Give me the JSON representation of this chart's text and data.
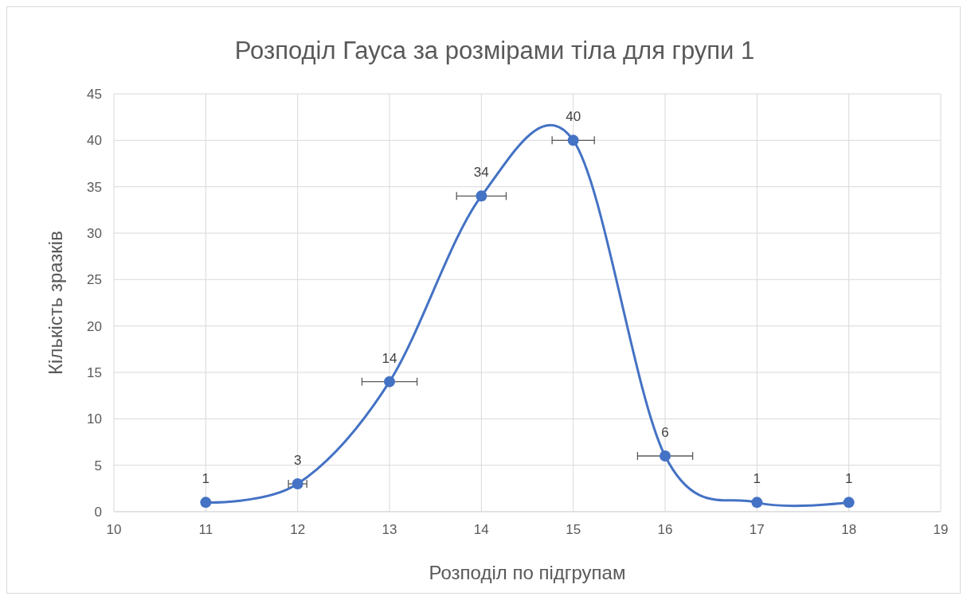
{
  "chart_data": {
    "type": "line",
    "title": "Розподіл Гауса за розмірами тіла для групи 1",
    "xlabel": "Розподіл по підгрупам",
    "ylabel": "Кількість зразків",
    "x": [
      11,
      12,
      13,
      14,
      15,
      16,
      17,
      18
    ],
    "series": [
      {
        "color": "#4472c4",
        "values": [
          1,
          3,
          14,
          34,
          40,
          6,
          1,
          1
        ],
        "xerrors": [
          null,
          0.1,
          0.3,
          0.27,
          0.23,
          0.3,
          null,
          null
        ]
      }
    ],
    "xlim": [
      10,
      19
    ],
    "xticks": [
      10,
      11,
      12,
      13,
      14,
      15,
      16,
      17,
      18,
      19
    ],
    "ylim": [
      0,
      45
    ],
    "yticks": [
      0,
      5,
      10,
      15,
      20,
      25,
      30,
      35,
      40,
      45
    ],
    "grid": true,
    "marker": "circle",
    "line_style": "solid",
    "data_labels": true
  }
}
